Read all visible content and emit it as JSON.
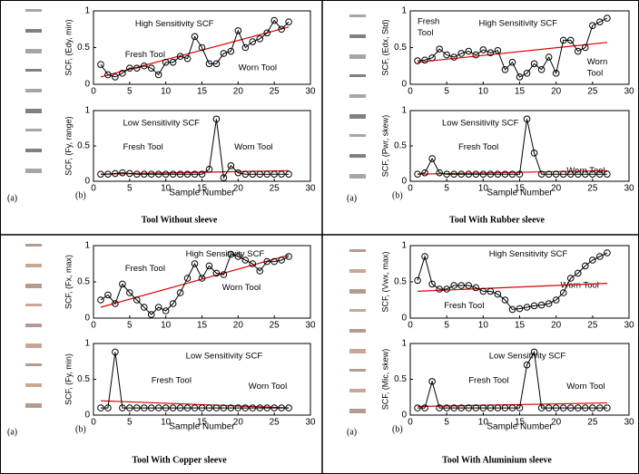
{
  "panels": [
    {
      "image_label": "(a)",
      "chart_label": "(b)",
      "caption": "Tool  Without  sleeve"
    },
    {
      "image_label": "(a)",
      "chart_label": "(b)",
      "caption": "Tool  With Rubber  sleeve"
    },
    {
      "image_label": "(a)",
      "chart_label": "(b)",
      "caption": "Tool  With Copper  sleeve"
    },
    {
      "image_label": "(a)",
      "chart_label": "(b)",
      "caption": "Tool  With Aluminium  sleeve"
    }
  ],
  "chart_data": [
    {
      "type": "line",
      "ylabel": "SCF, (Edy, min)",
      "annotations": [
        "High Sensitivity SCF",
        "Fresh Tool",
        "Worn Tool"
      ],
      "x": [
        1,
        2,
        3,
        4,
        5,
        6,
        7,
        8,
        9,
        10,
        11,
        12,
        13,
        14,
        15,
        16,
        17,
        18,
        19,
        20,
        21,
        22,
        23,
        24,
        25,
        26,
        27
      ],
      "series": [
        {
          "color": "#000000",
          "values": [
            0.27,
            0.13,
            0.1,
            0.15,
            0.22,
            0.22,
            0.25,
            0.22,
            0.13,
            0.3,
            0.3,
            0.38,
            0.35,
            0.65,
            0.5,
            0.28,
            0.28,
            0.42,
            0.45,
            0.73,
            0.5,
            0.58,
            0.62,
            0.7,
            0.87,
            0.75,
            0.85
          ]
        }
      ],
      "trend": {
        "color": "#e00000",
        "x": [
          1,
          27
        ],
        "values": [
          0.1,
          0.78
        ]
      },
      "xlim": [
        0,
        30
      ],
      "xticks": [
        0,
        5,
        10,
        15,
        20,
        25,
        30
      ],
      "ylim": [
        0,
        1
      ],
      "yticks": [
        0,
        0.5,
        1
      ]
    },
    {
      "type": "line",
      "ylabel": "SCF, (Fy, range)",
      "xlabel": "Sample Number",
      "annotations": [
        "Low Sensitivity SCF",
        "Fresh Tool",
        "Worn Tool"
      ],
      "x": [
        1,
        2,
        3,
        4,
        5,
        6,
        7,
        8,
        9,
        10,
        11,
        12,
        13,
        14,
        15,
        16,
        17,
        18,
        19,
        20,
        21,
        22,
        23,
        24,
        25,
        26,
        27
      ],
      "series": [
        {
          "color": "#000000",
          "values": [
            0.1,
            0.1,
            0.11,
            0.12,
            0.11,
            0.1,
            0.1,
            0.1,
            0.1,
            0.1,
            0.1,
            0.1,
            0.1,
            0.1,
            0.1,
            0.17,
            0.88,
            0.05,
            0.22,
            0.12,
            0.1,
            0.1,
            0.1,
            0.1,
            0.1,
            0.1,
            0.1
          ]
        }
      ],
      "trend": {
        "color": "#e00000",
        "x": [
          1,
          27
        ],
        "values": [
          0.1,
          0.15
        ]
      },
      "xlim": [
        0,
        30
      ],
      "xticks": [
        0,
        5,
        10,
        15,
        20,
        25,
        30
      ],
      "ylim": [
        0,
        1
      ],
      "yticks": [
        0,
        0.5,
        1
      ]
    },
    {
      "type": "line",
      "ylabel": "SCF, (Edx, Std)",
      "annotations": [
        "Fresh",
        "Tool",
        "High Sensitivity SCF",
        "Worn",
        "Tool"
      ],
      "x": [
        1,
        2,
        3,
        4,
        5,
        6,
        7,
        8,
        9,
        10,
        11,
        12,
        13,
        14,
        15,
        16,
        17,
        18,
        19,
        20,
        21,
        22,
        23,
        24,
        25,
        26,
        27
      ],
      "series": [
        {
          "color": "#000000",
          "values": [
            0.32,
            0.33,
            0.36,
            0.48,
            0.4,
            0.37,
            0.42,
            0.45,
            0.4,
            0.47,
            0.43,
            0.46,
            0.2,
            0.3,
            0.1,
            0.15,
            0.28,
            0.2,
            0.37,
            0.15,
            0.6,
            0.6,
            0.45,
            0.5,
            0.8,
            0.85,
            0.9
          ]
        }
      ],
      "trend": {
        "color": "#e00000",
        "x": [
          1,
          27
        ],
        "values": [
          0.3,
          0.57
        ]
      },
      "xlim": [
        0,
        30
      ],
      "xticks": [
        0,
        5,
        10,
        15,
        20,
        25,
        30
      ],
      "ylim": [
        0,
        1
      ],
      "yticks": [
        0,
        0.5,
        1
      ]
    },
    {
      "type": "line",
      "ylabel": "SCF, (Pwr, skew)",
      "xlabel": "Sample Number",
      "annotations": [
        "Low Sensitivity SCF",
        "Fresh Tool",
        "Worn Tool"
      ],
      "x": [
        1,
        2,
        3,
        4,
        5,
        6,
        7,
        8,
        9,
        10,
        11,
        12,
        13,
        14,
        15,
        16,
        17,
        18,
        19,
        20,
        21,
        22,
        23,
        24,
        25,
        26,
        27
      ],
      "series": [
        {
          "color": "#000000",
          "values": [
            0.1,
            0.12,
            0.32,
            0.12,
            0.1,
            0.1,
            0.1,
            0.1,
            0.1,
            0.1,
            0.1,
            0.1,
            0.1,
            0.1,
            0.1,
            0.88,
            0.4,
            0.1,
            0.1,
            0.1,
            0.1,
            0.1,
            0.1,
            0.1,
            0.1,
            0.1,
            0.1
          ]
        }
      ],
      "trend": {
        "color": "#e00000",
        "x": [
          1,
          27
        ],
        "values": [
          0.1,
          0.15
        ]
      },
      "xlim": [
        0,
        30
      ],
      "xticks": [
        0,
        5,
        10,
        15,
        20,
        25,
        30
      ],
      "ylim": [
        0,
        1
      ],
      "yticks": [
        0,
        0.5,
        1
      ]
    },
    {
      "type": "line",
      "ylabel": "SCF, (Fx, max)",
      "annotations": [
        "High Sensitivity SCF",
        "Fresh Tool",
        "Worn Tool"
      ],
      "x": [
        1,
        2,
        3,
        4,
        5,
        6,
        7,
        8,
        9,
        10,
        11,
        12,
        13,
        14,
        15,
        16,
        17,
        18,
        19,
        20,
        21,
        22,
        23,
        24,
        25,
        26,
        27
      ],
      "series": [
        {
          "color": "#000000",
          "values": [
            0.25,
            0.32,
            0.2,
            0.47,
            0.35,
            0.25,
            0.15,
            0.05,
            0.15,
            0.1,
            0.2,
            0.35,
            0.55,
            0.75,
            0.55,
            0.72,
            0.62,
            0.6,
            0.88,
            0.85,
            0.8,
            0.75,
            0.65,
            0.78,
            0.78,
            0.8,
            0.85
          ]
        }
      ],
      "trend": {
        "color": "#e00000",
        "x": [
          1,
          27
        ],
        "values": [
          0.15,
          0.87
        ]
      },
      "xlim": [
        0,
        30
      ],
      "xticks": [
        0,
        5,
        10,
        15,
        20,
        25,
        30
      ],
      "ylim": [
        0,
        1
      ],
      "yticks": [
        0,
        0.5,
        1
      ]
    },
    {
      "type": "line",
      "ylabel": "SCF, (Fy, min)",
      "xlabel": "Sample Number",
      "annotations": [
        "Low Sensitivity  SCF",
        "Fresh Tool",
        "Worn Tool"
      ],
      "x": [
        1,
        2,
        3,
        4,
        5,
        6,
        7,
        8,
        9,
        10,
        11,
        12,
        13,
        14,
        15,
        16,
        17,
        18,
        19,
        20,
        21,
        22,
        23,
        24,
        25,
        26,
        27
      ],
      "series": [
        {
          "color": "#000000",
          "values": [
            0.1,
            0.1,
            0.88,
            0.1,
            0.1,
            0.1,
            0.1,
            0.1,
            0.1,
            0.1,
            0.1,
            0.1,
            0.1,
            0.1,
            0.1,
            0.1,
            0.1,
            0.1,
            0.1,
            0.1,
            0.1,
            0.1,
            0.1,
            0.1,
            0.1,
            0.1,
            0.1
          ]
        }
      ],
      "trend": {
        "color": "#e00000",
        "x": [
          1,
          27
        ],
        "values": [
          0.2,
          0.1
        ]
      },
      "xlim": [
        0,
        30
      ],
      "xticks": [
        0,
        5,
        10,
        15,
        20,
        25,
        30
      ],
      "ylim": [
        0,
        1
      ],
      "yticks": [
        0,
        0.5,
        1
      ]
    },
    {
      "type": "line",
      "ylabel": "SCF, (Vwx, max)",
      "annotations": [
        "High Sensitivity SCF",
        "Fresh Tool",
        "Worn Tool"
      ],
      "x": [
        1,
        2,
        3,
        4,
        5,
        6,
        7,
        8,
        9,
        10,
        11,
        12,
        13,
        14,
        15,
        16,
        17,
        18,
        19,
        20,
        21,
        22,
        23,
        24,
        25,
        26,
        27
      ],
      "series": [
        {
          "color": "#000000",
          "values": [
            0.52,
            0.85,
            0.47,
            0.4,
            0.4,
            0.45,
            0.45,
            0.45,
            0.42,
            0.37,
            0.37,
            0.33,
            0.25,
            0.12,
            0.13,
            0.15,
            0.17,
            0.18,
            0.2,
            0.25,
            0.35,
            0.55,
            0.62,
            0.72,
            0.8,
            0.85,
            0.9
          ]
        }
      ],
      "trend": {
        "color": "#e00000",
        "x": [
          1,
          27
        ],
        "values": [
          0.37,
          0.48
        ]
      },
      "xlim": [
        0,
        30
      ],
      "xticks": [
        0,
        5,
        10,
        15,
        20,
        25,
        30
      ],
      "ylim": [
        0,
        1
      ],
      "yticks": [
        0,
        0.5,
        1
      ]
    },
    {
      "type": "line",
      "ylabel": "SCF, (Mic, skew)",
      "xlabel": "Sample Number",
      "annotations": [
        "Low Sensitivity SCF",
        "Fresh Tool",
        "Worn Tool"
      ],
      "x": [
        1,
        2,
        3,
        4,
        5,
        6,
        7,
        8,
        9,
        10,
        11,
        12,
        13,
        14,
        15,
        16,
        17,
        18,
        19,
        20,
        21,
        22,
        23,
        24,
        25,
        26,
        27
      ],
      "series": [
        {
          "color": "#000000",
          "values": [
            0.1,
            0.1,
            0.47,
            0.1,
            0.1,
            0.1,
            0.1,
            0.1,
            0.1,
            0.1,
            0.1,
            0.1,
            0.1,
            0.1,
            0.1,
            0.7,
            0.88,
            0.1,
            0.1,
            0.1,
            0.1,
            0.1,
            0.1,
            0.1,
            0.1,
            0.1,
            0.1
          ]
        }
      ],
      "trend": {
        "color": "#e00000",
        "x": [
          1,
          27
        ],
        "values": [
          0.12,
          0.17
        ]
      },
      "xlim": [
        0,
        30
      ],
      "xticks": [
        0,
        5,
        10,
        15,
        20,
        25,
        30
      ],
      "ylim": [
        0,
        1
      ],
      "yticks": [
        0,
        0.5,
        1
      ]
    }
  ]
}
